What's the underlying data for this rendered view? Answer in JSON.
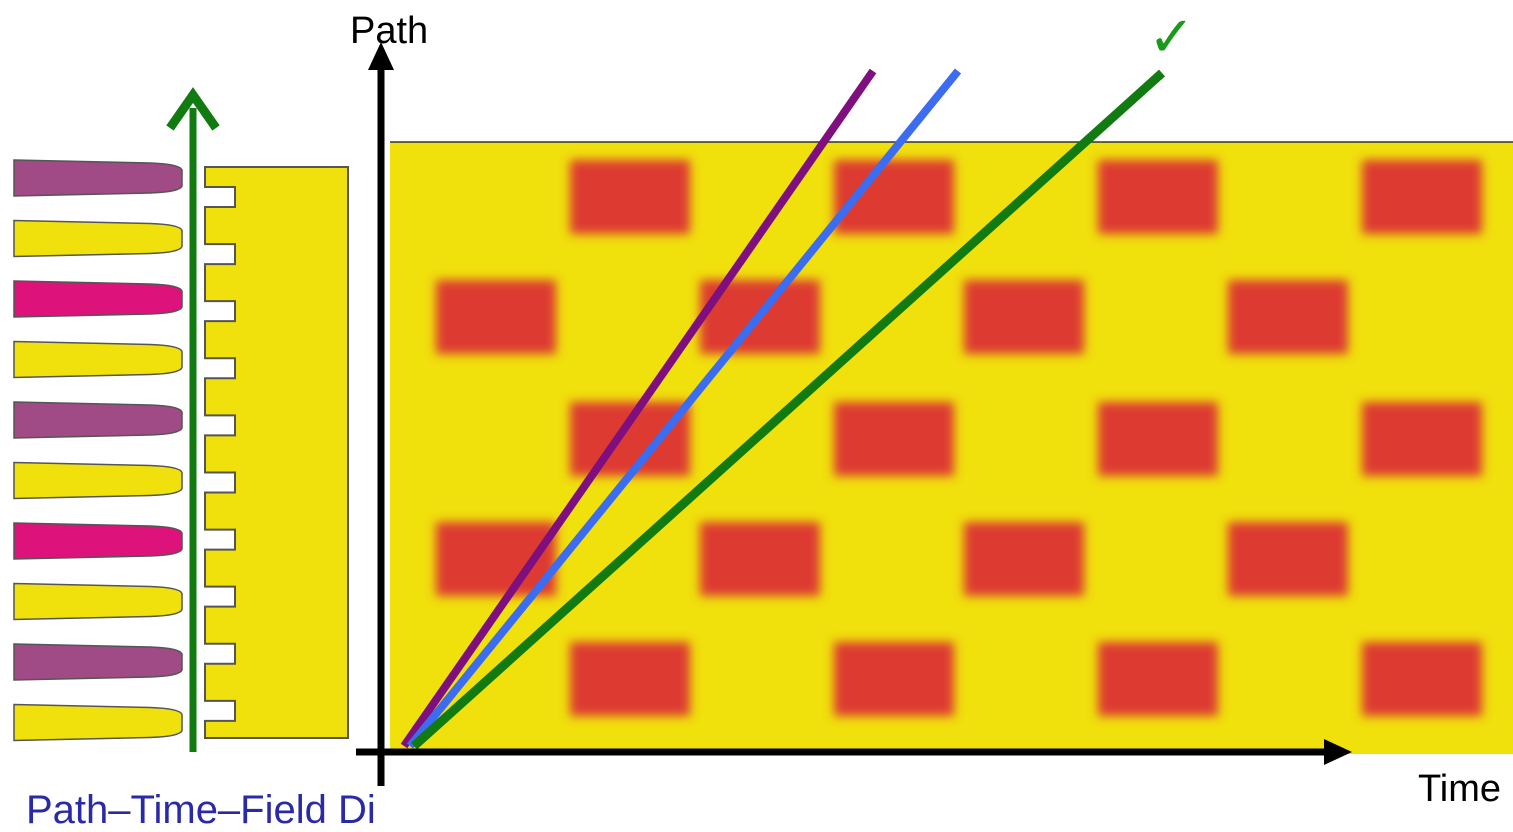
{
  "labels": {
    "path_axis": "Path",
    "time_axis": "Time",
    "caption": "Path–Time–Field Di",
    "check": "✓"
  },
  "colors": {
    "field_background": "#f0e00c",
    "red_block": "#dd3a31",
    "purple_line": "#7f0f7e",
    "blue_line": "#3c6cf0",
    "green_line": "#117a11",
    "caption": "#2a2aa8",
    "check": "#1a9a1a",
    "blade_purple": "#a04a86",
    "blade_magenta": "#dd127a",
    "blade_yellow": "#f0e00c"
  },
  "blades": [
    "purple",
    "yellow",
    "magenta",
    "yellow",
    "purple",
    "yellow",
    "magenta",
    "yellow",
    "purple",
    "yellow"
  ],
  "block_rows": [
    {
      "offset": "a",
      "count": 4
    },
    {
      "offset": "b",
      "count": 4
    },
    {
      "offset": "a",
      "count": 4
    },
    {
      "offset": "b",
      "count": 4
    },
    {
      "offset": "a",
      "count": 4
    }
  ],
  "trajectories": [
    {
      "name": "purple",
      "color": "#7f0f7e"
    },
    {
      "name": "blue",
      "color": "#3c6cf0"
    },
    {
      "name": "green",
      "color": "#117a11",
      "accepted": true
    }
  ]
}
